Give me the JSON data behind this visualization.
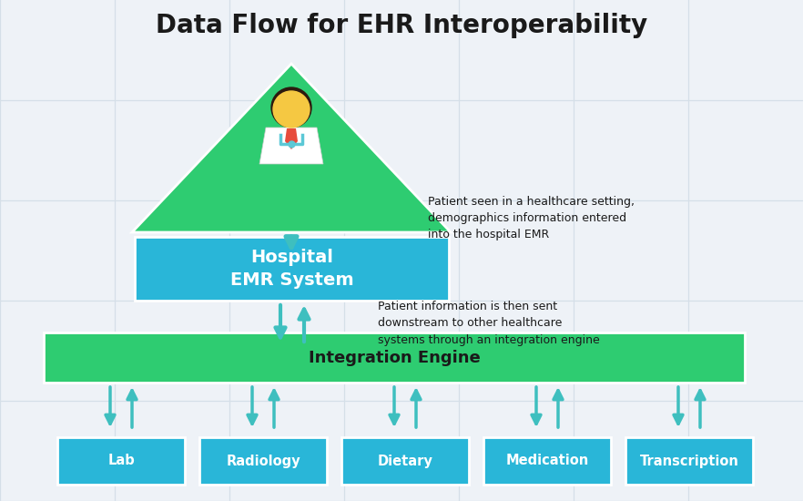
{
  "title": "Data Flow for EHR Interoperability",
  "title_fontsize": 20,
  "title_fontweight": "bold",
  "background_color": "#eef2f7",
  "grid_color": "#d5dfe8",
  "triangle_color": "#2ecc71",
  "emr_box_color": "#29b6d8",
  "integration_box_color": "#2ecc71",
  "bottom_box_color": "#29b6d8",
  "emr_text": "Hospital\nEMR System",
  "integration_text": "Integration Engine",
  "bottom_labels": [
    "Lab",
    "Radiology",
    "Dietary",
    "Medication",
    "Transcription"
  ],
  "annotation1": "Patient seen in a healthcare setting,\ndemographics information entered\ninto the hospital EMR",
  "annotation2": "Patient information is then sent\ndownstream to other healthcare\nsystems through an integration engine",
  "arrow_color": "#3ebfbf",
  "white_text_color": "#ffffff",
  "black_text_color": "#1a1a1a",
  "doctor_skin": "#f5c842",
  "doctor_hair": "#2c1a0e",
  "doctor_coat": "#ffffff",
  "doctor_tie": "#e74c3c",
  "doctor_steth": "#5bc8d6"
}
